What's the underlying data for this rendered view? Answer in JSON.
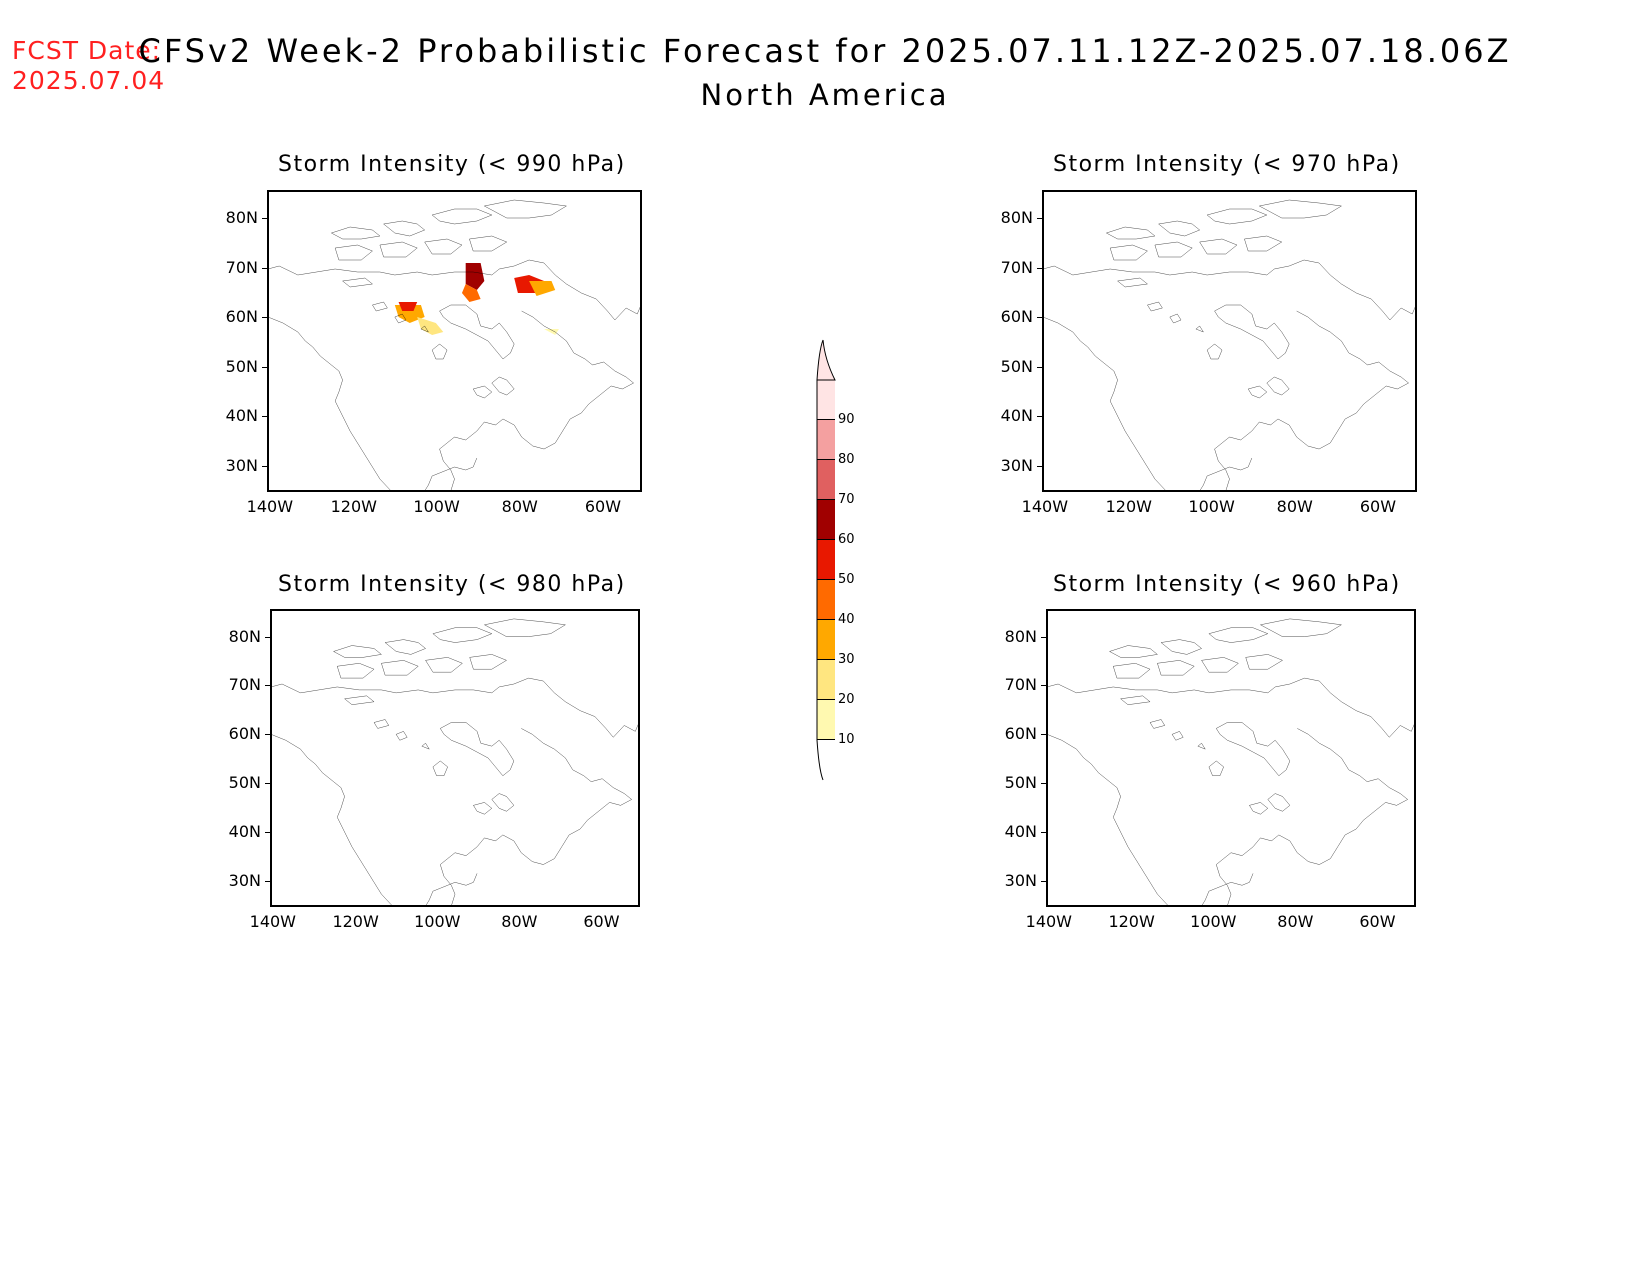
{
  "fcst_date": {
    "label": "FCST Date:",
    "value": "2025.07.04"
  },
  "title": "CFSv2 Week-2 Probabilistic Forecast for 2025.07.11.12Z-2025.07.18.06Z",
  "subtitle": "North America",
  "axes": {
    "lat_ticks": [
      "80N",
      "70N",
      "60N",
      "50N",
      "40N",
      "30N"
    ],
    "lon_ticks": [
      "140W",
      "120W",
      "100W",
      "80W",
      "60W"
    ]
  },
  "panels": [
    {
      "id": "p990",
      "title": "Storm Intensity (< 990 hPa)",
      "has_data": true
    },
    {
      "id": "p970",
      "title": "Storm Intensity (< 970 hPa)",
      "has_data": false
    },
    {
      "id": "p980",
      "title": "Storm Intensity (< 980 hPa)",
      "has_data": false
    },
    {
      "id": "p960",
      "title": "Storm Intensity (< 960 hPa)",
      "has_data": false
    }
  ],
  "colorbar": {
    "levels": [
      "10",
      "20",
      "30",
      "40",
      "50",
      "60",
      "70",
      "80",
      "90"
    ],
    "colors": [
      "#fff9b0",
      "#ffe680",
      "#ffa800",
      "#ff6a00",
      "#e81800",
      "#a00000",
      "#e06060",
      "#f4a0a0",
      "#ffe4e4"
    ]
  }
}
